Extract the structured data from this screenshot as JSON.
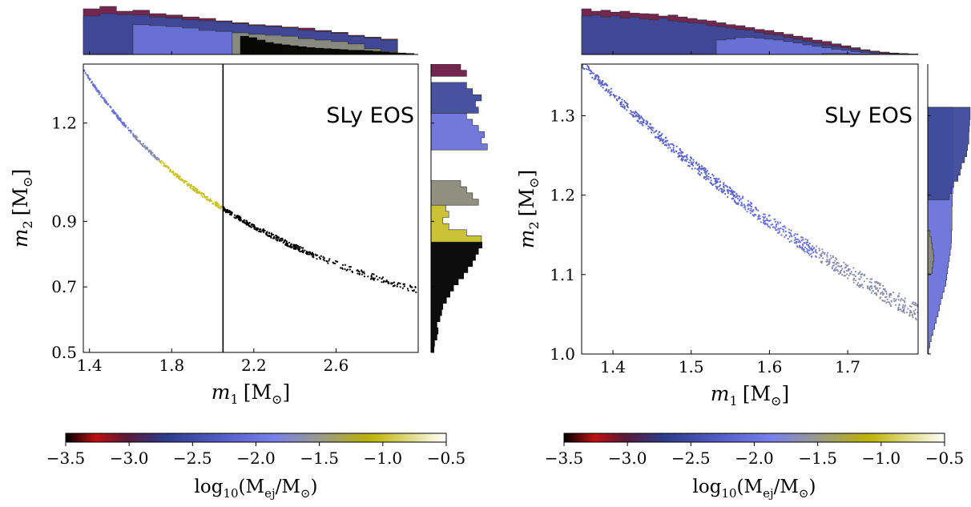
{
  "chart_data": [
    {
      "type": "scatter",
      "label": "SLy EOS",
      "xlabel_var": "m",
      "xlabel_sub": "1",
      "xlabel_unit": "[M",
      "xlabel_close": "]",
      "ylabel_var": "m",
      "ylabel_sub": "2",
      "ylabel_unit": "[M",
      "ylabel_close": "]",
      "xlim": [
        1.37,
        3.0
      ],
      "ylim": [
        0.5,
        1.38
      ],
      "xticks": [
        1.4,
        1.8,
        2.2,
        2.6
      ],
      "xtick_labels": [
        "1.4",
        "1.8",
        "2.2",
        "2.6"
      ],
      "yticks": [
        0.5,
        0.7,
        0.9,
        1.2
      ],
      "ytick_labels": [
        "0.5",
        "0.7",
        "0.9",
        "1.2"
      ],
      "threshold_x": 2.05,
      "curve_chirp_mass": 1.19,
      "curve_spread": 0.004,
      "segments": [
        {
          "x_from": 1.37,
          "x_to": 1.62,
          "color": "#6a72d8"
        },
        {
          "x_from": 1.62,
          "x_to": 1.74,
          "color": "#8a8cae"
        },
        {
          "x_from": 1.74,
          "x_to": 2.05,
          "color": "#c8c02a"
        },
        {
          "x_from": 2.05,
          "x_to": 2.99,
          "color": "#000000"
        }
      ],
      "top_histogram": {
        "x_range": [
          1.37,
          2.98
        ],
        "layers": [
          {
            "color": "#6b1b44",
            "heights": [
              0.95,
              1.0,
              0.9,
              0.92,
              0.85,
              0.82,
              0.78,
              0.75,
              0.7,
              0.66,
              0.62,
              0.6,
              0.57,
              0.55,
              0.5,
              0.46,
              0.4,
              0.36,
              0.32,
              0.0
            ]
          },
          {
            "color": "#3d4a9a",
            "heights": [
              0.8,
              0.85,
              0.83,
              0.82,
              0.78,
              0.76,
              0.72,
              0.7,
              0.68,
              0.64,
              0.6,
              0.58,
              0.55,
              0.5,
              0.48,
              0.44,
              0.38,
              0.34,
              0.3,
              0.0
            ]
          },
          {
            "color": "#6a72d8",
            "heights": [
              0.0,
              0.0,
              0.0,
              0.62,
              0.6,
              0.58,
              0.55,
              0.5,
              0.48,
              0.45,
              0.42,
              0.38,
              0.36,
              0.3,
              0.28,
              0.25,
              0.18,
              0.1,
              0.05,
              0.0
            ]
          },
          {
            "color": "#8a8a7a",
            "heights": [
              0.0,
              0.0,
              0.0,
              0.0,
              0.0,
              0.0,
              0.0,
              0.0,
              0.0,
              0.45,
              0.42,
              0.4,
              0.38,
              0.33,
              0.3,
              0.27,
              0.22,
              0.12,
              0.06,
              0.0
            ]
          },
          {
            "color": "#c8c02a",
            "heights": [
              0.0,
              0.0,
              0.0,
              0.0,
              0.0,
              0.0,
              0.0,
              0.0,
              0.0,
              0.0,
              0.0,
              0.0,
              0.15,
              0.14,
              0.12,
              0.1,
              0.09,
              0.08,
              0.06,
              0.0
            ]
          },
          {
            "color": "#000000",
            "heights": [
              0.0,
              0.0,
              0.0,
              0.0,
              0.0,
              0.0,
              0.0,
              0.0,
              0.0,
              0.0,
              0.0,
              0.0,
              0.0,
              0.0,
              0.0,
              0.0,
              0.0,
              0.0,
              0.0,
              0.38,
              0.35,
              0.3,
              0.25,
              0.22,
              0.2,
              0.18,
              0.16,
              0.14,
              0.13,
              0.12,
              0.11,
              0.1,
              0.08,
              0.08,
              0.07,
              0.06,
              0.05,
              0.04,
              0.03,
              0.02
            ]
          }
        ]
      },
      "right_histogram": {
        "y_range": [
          0.5,
          1.38
        ],
        "layers": [
          {
            "color": "#000000",
            "widths": [
              0.05,
              0.06,
              0.1,
              0.12,
              0.1,
              0.15,
              0.18,
              0.2,
              0.26,
              0.32,
              0.38,
              0.46,
              0.55,
              0.62,
              0.7,
              0.75,
              0.8,
              0.86
            ]
          },
          {
            "color": "#c8c02a",
            "widths": [
              0.0,
              0.0,
              0.0,
              0.0,
              0.0,
              0.0,
              0.0,
              0.0,
              0.0,
              0.0,
              0.0,
              0.0,
              0.0,
              0.0,
              0.0,
              0.0,
              0.0,
              0.0,
              0.85,
              0.6,
              0.3,
              0.2,
              0.3,
              0.25,
              0.0,
              0.0,
              0.0,
              0.0,
              0.0,
              0.0
            ]
          },
          {
            "color": "#8a8a7a",
            "widths": [
              0.0,
              0.0,
              0.0,
              0.0,
              0.0,
              0.0,
              0.0,
              0.0,
              0.0,
              0.0,
              0.0,
              0.0,
              0.0,
              0.0,
              0.0,
              0.0,
              0.0,
              0.0,
              0.0,
              0.0,
              0.0,
              0.0,
              0.0,
              0.0,
              0.8,
              0.7,
              0.6,
              0.5,
              0.0,
              0.0
            ]
          },
          {
            "color": "#6a72d8",
            "widths": [
              0.0,
              0.0,
              0.0,
              0.0,
              0.0,
              0.0,
              0.0,
              0.0,
              0.0,
              0.0,
              0.0,
              0.0,
              0.0,
              0.0,
              0.0,
              0.0,
              0.0,
              0.0,
              0.0,
              0.0,
              0.0,
              0.0,
              0.0,
              0.0,
              0.0,
              0.0,
              0.0,
              0.0,
              0.0,
              0.0,
              0.0,
              0.0,
              0.0,
              0.95,
              0.85,
              0.9,
              0.8,
              0.7,
              0.6
            ]
          },
          {
            "color": "#3d4a9a",
            "widths": [
              0.0,
              0.0,
              0.0,
              0.0,
              0.0,
              0.0,
              0.0,
              0.0,
              0.0,
              0.0,
              0.0,
              0.0,
              0.0,
              0.0,
              0.0,
              0.0,
              0.0,
              0.0,
              0.0,
              0.0,
              0.0,
              0.0,
              0.0,
              0.0,
              0.0,
              0.0,
              0.0,
              0.0,
              0.0,
              0.0,
              0.0,
              0.0,
              0.0,
              0.0,
              0.0,
              0.0,
              0.0,
              0.0,
              0.0,
              0.8,
              0.75,
              0.85,
              0.7,
              0.6
            ]
          },
          {
            "color": "#6b1b44",
            "widths": [
              0.0,
              0.0,
              0.0,
              0.0,
              0.0,
              0.0,
              0.0,
              0.0,
              0.0,
              0.0,
              0.0,
              0.0,
              0.0,
              0.0,
              0.0,
              0.0,
              0.0,
              0.0,
              0.0,
              0.0,
              0.0,
              0.0,
              0.0,
              0.0,
              0.0,
              0.0,
              0.0,
              0.0,
              0.0,
              0.0,
              0.0,
              0.0,
              0.0,
              0.0,
              0.0,
              0.0,
              0.0,
              0.0,
              0.0,
              0.0,
              0.0,
              0.0,
              0.0,
              0.0,
              0.0,
              0.6,
              0.5
            ]
          }
        ]
      },
      "colorbar": {
        "label": "log",
        "label_sub": "10",
        "label_rest": "(M",
        "label_ej": "ej",
        "label_tail": "/M",
        "label_end": ")",
        "range": [
          -3.5,
          -0.5
        ],
        "ticks": [
          -3.5,
          -3.0,
          -2.5,
          -2.0,
          -1.5,
          -1.0,
          -0.5
        ],
        "tick_labels": [
          "−3.5",
          "−3.0",
          "−2.5",
          "−2.0",
          "−1.5",
          "−1.0",
          "−0.5"
        ]
      }
    },
    {
      "type": "scatter",
      "label": "SLy EOS",
      "xlabel_var": "m",
      "xlabel_sub": "1",
      "xlabel_unit": "[M",
      "xlabel_close": "]",
      "ylabel_var": "m",
      "ylabel_sub": "2",
      "ylabel_unit": "[M",
      "ylabel_close": "]",
      "xlim": [
        1.36,
        1.79
      ],
      "ylim": [
        1.0,
        1.365
      ],
      "xticks": [
        1.4,
        1.5,
        1.6,
        1.7
      ],
      "xtick_labels": [
        "1.4",
        "1.5",
        "1.6",
        "1.7"
      ],
      "yticks": [
        1.0,
        1.1,
        1.2,
        1.3
      ],
      "ytick_labels": [
        "1.0",
        "1.1",
        "1.2",
        "1.3"
      ],
      "curve_chirp_mass": 1.1865,
      "curve_spread": 0.0045,
      "segments": [
        {
          "x_from": 1.36,
          "x_to": 1.56,
          "color": "#5a63c8"
        },
        {
          "x_from": 1.56,
          "x_to": 1.66,
          "color": "#6a72d8"
        },
        {
          "x_from": 1.66,
          "x_to": 1.79,
          "color": "#8a8cae"
        }
      ],
      "top_histogram": {
        "x_range": [
          1.36,
          1.79
        ],
        "layers": [
          {
            "color": "#6b1b44",
            "heights": [
              0.95,
              0.9,
              0.92,
              0.88,
              0.9,
              0.86,
              0.85,
              0.84,
              0.8,
              0.82,
              0.78,
              0.75,
              0.72,
              0.7,
              0.66,
              0.62,
              0.6,
              0.56,
              0.52,
              0.5,
              0.46,
              0.42,
              0.38,
              0.35,
              0.3,
              0.27,
              0.22,
              0.18,
              0.14,
              0.1,
              0.07,
              0.05,
              0.03,
              0.02,
              0.01
            ]
          },
          {
            "color": "#3d4a9a",
            "heights": [
              0.8,
              0.82,
              0.78,
              0.8,
              0.76,
              0.78,
              0.74,
              0.72,
              0.75,
              0.7,
              0.68,
              0.66,
              0.65,
              0.6,
              0.58,
              0.55,
              0.52,
              0.5,
              0.46,
              0.42,
              0.4,
              0.36,
              0.32,
              0.28,
              0.24,
              0.2,
              0.17,
              0.14,
              0.11,
              0.08,
              0.05,
              0.03,
              0.02,
              0.01,
              0.0
            ]
          },
          {
            "color": "#6a72d8",
            "heights": [
              0.0,
              0.0,
              0.0,
              0.0,
              0.0,
              0.0,
              0.0,
              0.0,
              0.0,
              0.0,
              0.0,
              0.0,
              0.0,
              0.0,
              0.3,
              0.32,
              0.35,
              0.36,
              0.34,
              0.32,
              0.3,
              0.27,
              0.24,
              0.2,
              0.17,
              0.14,
              0.11,
              0.09,
              0.06,
              0.04,
              0.03,
              0.02,
              0.01,
              0.0,
              0.0
            ]
          },
          {
            "color": "#8a8a7a",
            "heights": [
              0.0,
              0.0,
              0.0,
              0.0,
              0.0,
              0.0,
              0.0,
              0.0,
              0.0,
              0.0,
              0.0,
              0.0,
              0.0,
              0.0,
              0.0,
              0.0,
              0.0,
              0.0,
              0.0,
              0.0,
              0.0,
              0.0,
              0.0,
              0.0,
              0.0,
              0.02,
              0.02,
              0.02,
              0.01,
              0.01,
              0.01,
              0.0,
              0.0,
              0.0,
              0.0
            ]
          }
        ]
      },
      "right_histogram": {
        "y_range": [
          1.0,
          1.365
        ],
        "layers": [
          {
            "color": "#6a72d8",
            "widths": [
              0.02,
              0.05,
              0.08,
              0.12,
              0.16,
              0.2,
              0.24,
              0.27,
              0.3,
              0.34,
              0.38,
              0.42,
              0.44,
              0.46,
              0.48,
              0.5,
              0.52,
              0.54,
              0.55,
              0.55,
              0.56,
              0.56,
              0.56,
              0.56,
              0.57,
              0.57,
              0.58,
              0.58,
              0.58,
              0.58,
              0.58,
              0.58,
              0.58,
              0.58,
              0.58,
              0.58,
              0.58,
              0.58,
              0.58,
              0.58
            ]
          },
          {
            "color": "#3d4a9a",
            "widths": [
              0.0,
              0.0,
              0.0,
              0.0,
              0.0,
              0.0,
              0.0,
              0.0,
              0.0,
              0.0,
              0.0,
              0.0,
              0.0,
              0.0,
              0.0,
              0.0,
              0.0,
              0.0,
              0.0,
              0.0,
              0.0,
              0.0,
              0.0,
              0.0,
              0.0,
              0.5,
              0.55,
              0.6,
              0.7,
              0.75,
              0.78,
              0.85,
              0.9,
              0.92,
              0.95,
              0.95,
              0.96,
              0.97,
              0.98,
              0.98
            ]
          },
          {
            "color": "#8a8a7a",
            "widths": [
              0.0,
              0.0,
              0.0,
              0.0,
              0.0,
              0.0,
              0.0,
              0.0,
              0.0,
              0.0,
              0.0,
              0.0,
              0.0,
              0.1,
              0.12,
              0.14,
              0.13,
              0.1,
              0.08,
              0.05,
              0.0,
              0.0,
              0.0,
              0.0,
              0.0,
              0.0,
              0.0,
              0.0,
              0.0,
              0.0,
              0.0,
              0.0,
              0.0,
              0.0,
              0.0,
              0.0,
              0.0,
              0.0,
              0.0,
              0.0
            ]
          }
        ]
      },
      "colorbar": {
        "label": "log",
        "label_sub": "10",
        "label_rest": "(M",
        "label_ej": "ej",
        "label_tail": "/M",
        "label_end": ")",
        "range": [
          -3.5,
          -0.5
        ],
        "ticks": [
          -3.5,
          -3.0,
          -2.5,
          -2.0,
          -1.5,
          -1.0,
          -0.5
        ],
        "tick_labels": [
          "−3.5",
          "−3.0",
          "−2.5",
          "−2.0",
          "−1.5",
          "−1.0",
          "−0.5"
        ]
      }
    }
  ],
  "colormap_stops": [
    {
      "v": 0.0,
      "color": "#000000"
    },
    {
      "v": 0.08,
      "color": "#c01010"
    },
    {
      "v": 0.16,
      "color": "#5a1a38"
    },
    {
      "v": 0.26,
      "color": "#2c3a8a"
    },
    {
      "v": 0.42,
      "color": "#5560c8"
    },
    {
      "v": 0.55,
      "color": "#7a80e8"
    },
    {
      "v": 0.67,
      "color": "#9a9a88"
    },
    {
      "v": 0.8,
      "color": "#bcb200"
    },
    {
      "v": 1.0,
      "color": "#ffffff"
    }
  ]
}
